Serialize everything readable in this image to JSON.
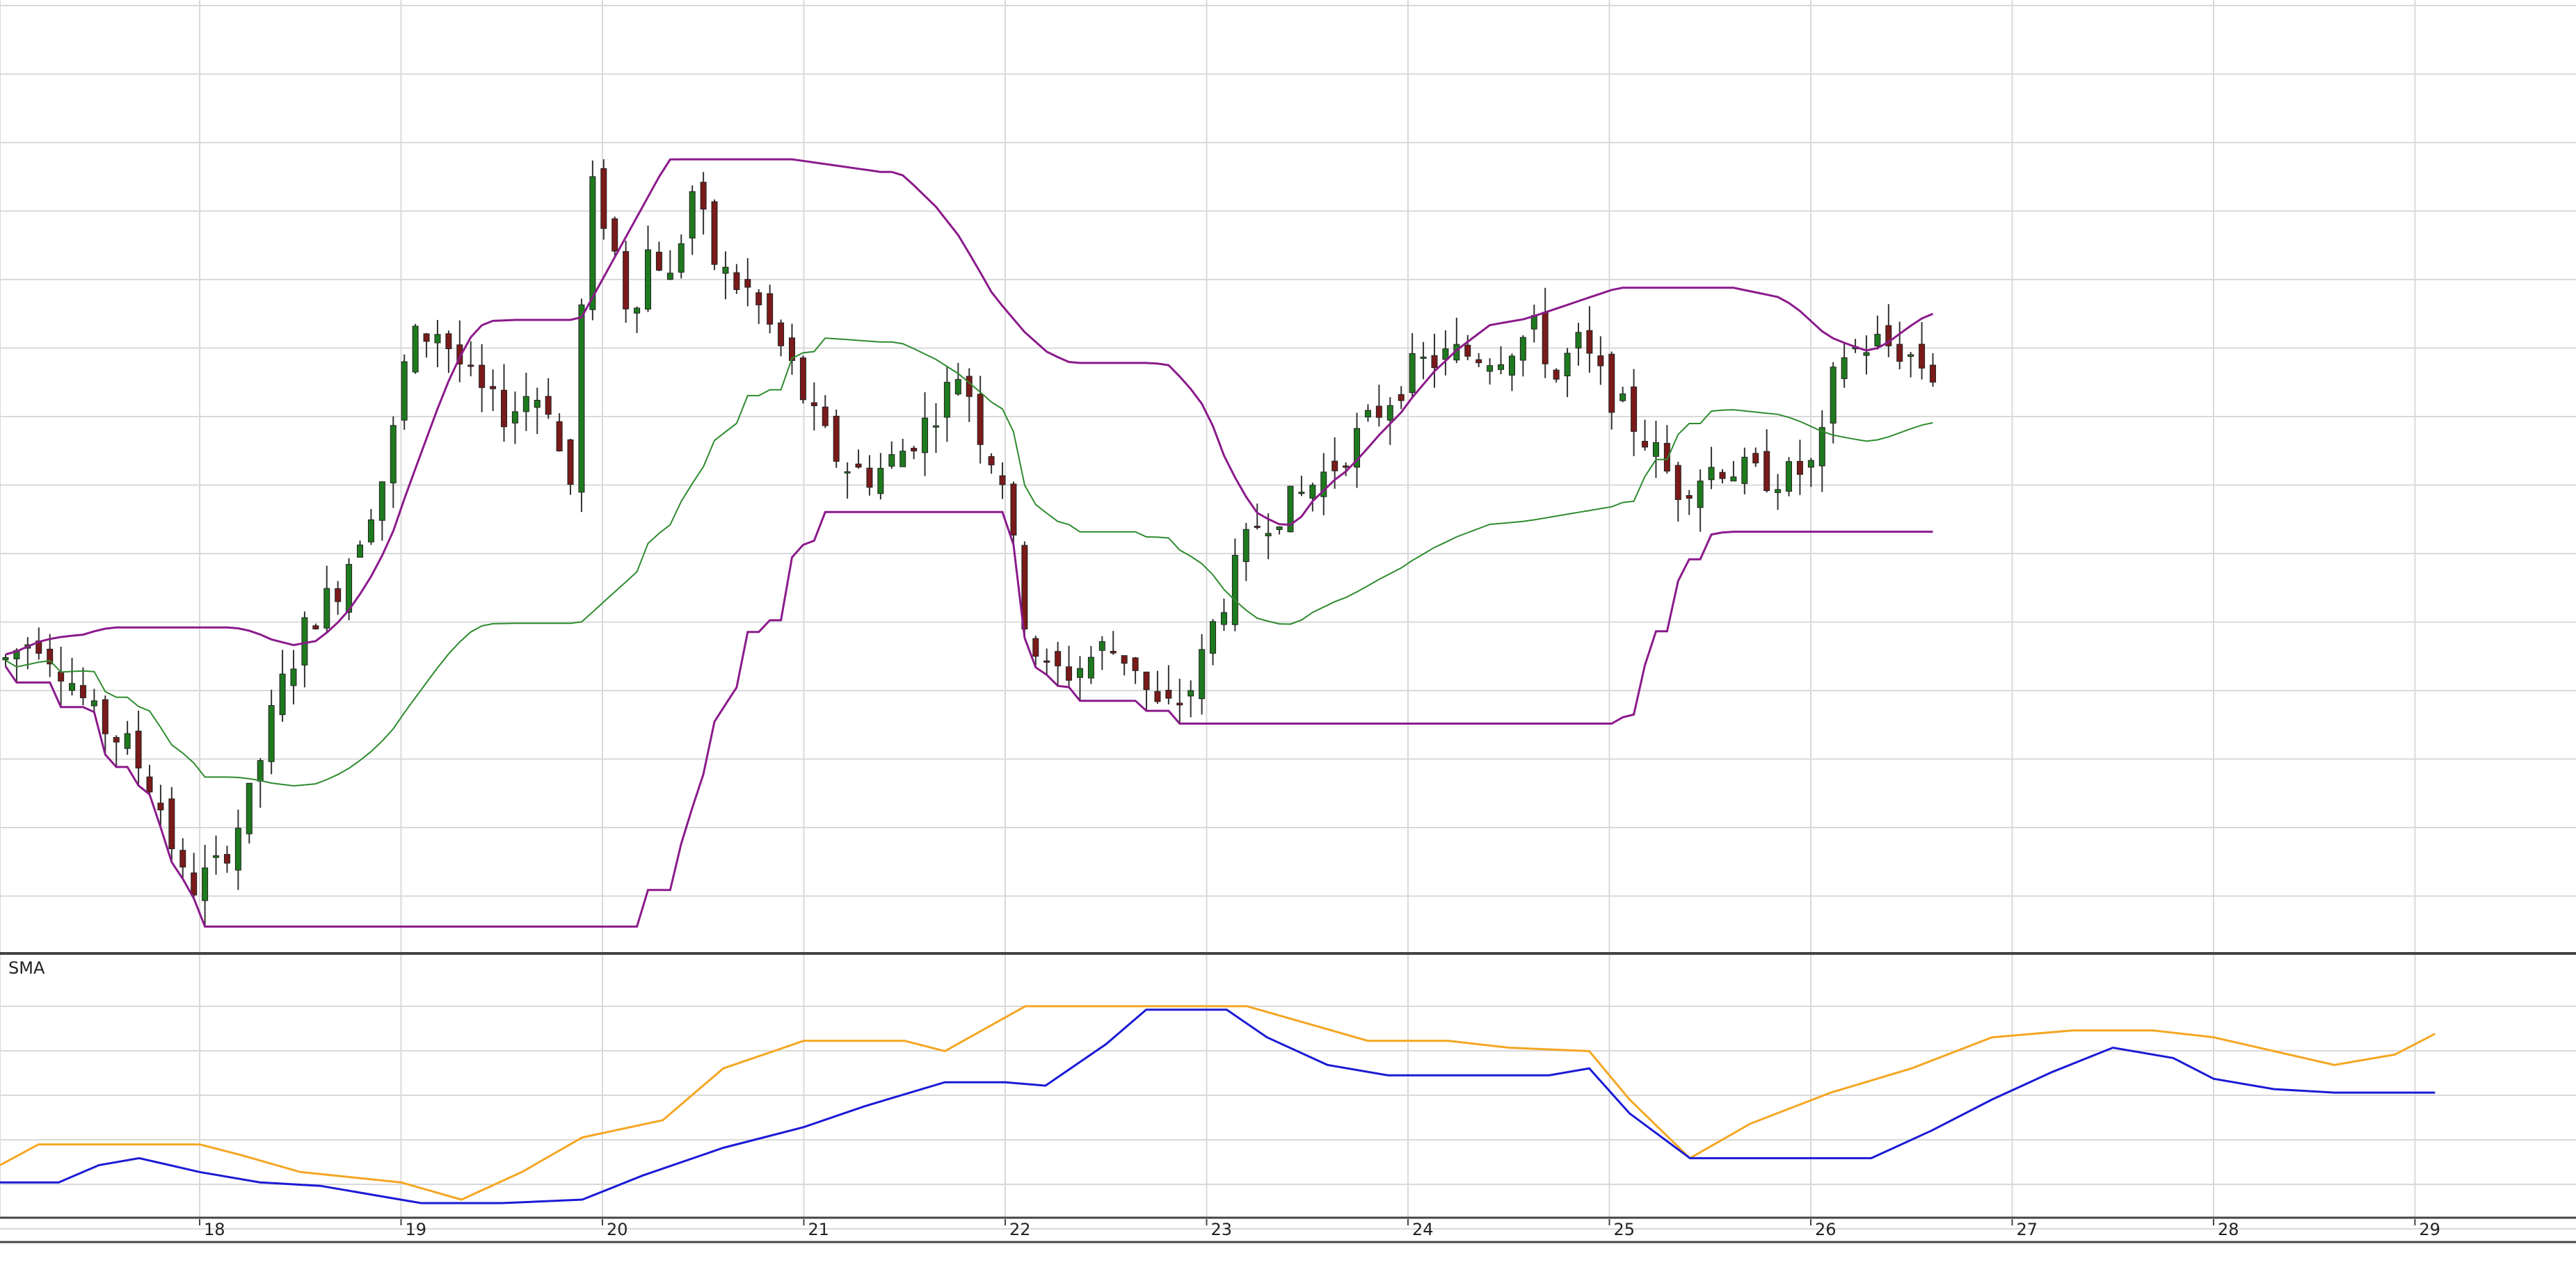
{
  "chart_data": [
    {
      "type": "candlestick",
      "panel": "price",
      "x_ticks": [
        "18",
        "19",
        "20",
        "21",
        "22",
        "23",
        "24",
        "25",
        "26",
        "27",
        "28",
        "29"
      ],
      "grid": true,
      "legend": "none",
      "colors": {
        "up_body": "#1e7a1e",
        "down_body": "#7a1a1a",
        "wick": "#333333",
        "band_upper": "#8b1a8b",
        "band_lower": "#8b1a8b",
        "midline": "#2e8b2e",
        "grid": "#d9d9d9"
      },
      "close_anchors": [
        [
          0,
          18
        ],
        [
          0.15,
          19
        ],
        [
          0.3,
          17.5
        ],
        [
          0.45,
          15.5
        ],
        [
          0.6,
          14.5
        ],
        [
          0.75,
          12.5
        ],
        [
          0.9,
          8.5
        ],
        [
          1.05,
          9.5
        ],
        [
          1.2,
          12.0
        ],
        [
          1.35,
          16.5
        ],
        [
          1.5,
          19.5
        ],
        [
          1.65,
          21.0
        ],
        [
          1.8,
          24.0
        ],
        [
          1.9,
          26.0
        ],
        [
          2.0,
          31.0
        ],
        [
          2.15,
          31.5
        ],
        [
          2.3,
          29.5
        ],
        [
          2.4,
          28.5
        ],
        [
          2.5,
          28.0
        ],
        [
          2.6,
          29.0
        ],
        [
          2.7,
          28.5
        ],
        [
          2.8,
          24.5
        ],
        [
          2.9,
          37.5
        ],
        [
          3.0,
          35.5
        ],
        [
          3.1,
          32.0
        ],
        [
          3.2,
          35.0
        ],
        [
          3.3,
          33.5
        ],
        [
          3.42,
          37.5
        ],
        [
          3.5,
          34.5
        ],
        [
          3.6,
          33.5
        ],
        [
          3.7,
          33.0
        ],
        [
          3.8,
          31.5
        ],
        [
          3.9,
          30.0
        ],
        [
          4.0,
          28.0
        ],
        [
          4.15,
          26.0
        ],
        [
          4.3,
          25.5
        ],
        [
          4.45,
          26.5
        ],
        [
          4.6,
          28.0
        ],
        [
          4.75,
          30.0
        ],
        [
          4.85,
          27.0
        ],
        [
          4.95,
          25.5
        ],
        [
          5.05,
          20.0
        ],
        [
          5.15,
          17.5
        ],
        [
          5.3,
          17.5
        ],
        [
          5.45,
          18.5
        ],
        [
          5.6,
          18.0
        ],
        [
          5.7,
          16.0
        ],
        [
          5.8,
          16.0
        ],
        [
          5.9,
          17.0
        ],
        [
          6.0,
          19.5
        ],
        [
          6.2,
          23.5
        ],
        [
          6.4,
          24.5
        ],
        [
          6.6,
          26.0
        ],
        [
          6.8,
          28.0
        ],
        [
          7.0,
          30.0
        ],
        [
          7.2,
          30.5
        ],
        [
          7.4,
          30.5
        ],
        [
          7.6,
          31.5
        ],
        [
          7.7,
          29.5
        ],
        [
          7.8,
          31.0
        ],
        [
          8.0,
          28.5
        ],
        [
          8.15,
          27.0
        ],
        [
          8.3,
          25.0
        ],
        [
          8.5,
          26.0
        ],
        [
          8.7,
          25.5
        ],
        [
          8.85,
          25.5
        ],
        [
          9.0,
          26.0
        ],
        [
          9.1,
          30.5
        ],
        [
          9.3,
          31.0
        ],
        [
          9.45,
          30.5
        ],
        [
          9.6,
          29.5
        ]
      ],
      "ylim": [
        6,
        45
      ]
    },
    {
      "type": "line",
      "panel": "indicator",
      "title": "SMA",
      "x_ticks": [
        "18",
        "19",
        "20",
        "21",
        "22",
        "23",
        "24",
        "25",
        "26",
        "27",
        "28",
        "29"
      ],
      "grid": true,
      "series": [
        {
          "color": "#f5a623",
          "values": [
            [
              0,
              1.1
            ],
            [
              0.2,
              1.7
            ],
            [
              0.6,
              1.7
            ],
            [
              1.0,
              1.7
            ],
            [
              1.2,
              1.4
            ],
            [
              1.5,
              0.9
            ],
            [
              2.0,
              0.6
            ],
            [
              2.3,
              0.1
            ],
            [
              2.6,
              0.9
            ],
            [
              2.9,
              1.9
            ],
            [
              3.3,
              2.4
            ],
            [
              3.6,
              3.9
            ],
            [
              4.0,
              4.7
            ],
            [
              4.5,
              4.7
            ],
            [
              4.7,
              4.4
            ],
            [
              5.1,
              5.7
            ],
            [
              5.5,
              5.7
            ],
            [
              5.9,
              5.7
            ],
            [
              6.2,
              5.7
            ],
            [
              6.5,
              5.2
            ],
            [
              6.8,
              4.7
            ],
            [
              7.2,
              4.7
            ],
            [
              7.5,
              4.5
            ],
            [
              7.9,
              4.4
            ],
            [
              8.1,
              3.0
            ],
            [
              8.4,
              1.3
            ],
            [
              8.7,
              2.3
            ],
            [
              9.1,
              3.2
            ],
            [
              9.5,
              3.9
            ],
            [
              9.9,
              4.8
            ],
            [
              10.3,
              5.0
            ],
            [
              10.7,
              5.0
            ],
            [
              11.0,
              4.8
            ],
            [
              11.3,
              4.4
            ],
            [
              11.6,
              4.0
            ],
            [
              11.9,
              4.3
            ],
            [
              12.1,
              4.9
            ]
          ]
        },
        {
          "color": "#1a1ad6",
          "values": [
            [
              0,
              0.6
            ],
            [
              0.3,
              0.6
            ],
            [
              0.5,
              1.1
            ],
            [
              0.7,
              1.3
            ],
            [
              1.0,
              0.9
            ],
            [
              1.3,
              0.6
            ],
            [
              1.6,
              0.5
            ],
            [
              1.9,
              0.2
            ],
            [
              2.1,
              0.0
            ],
            [
              2.5,
              0.0
            ],
            [
              2.9,
              0.1
            ],
            [
              3.2,
              0.8
            ],
            [
              3.6,
              1.6
            ],
            [
              4.0,
              2.2
            ],
            [
              4.3,
              2.8
            ],
            [
              4.7,
              3.5
            ],
            [
              5.0,
              3.5
            ],
            [
              5.2,
              3.4
            ],
            [
              5.5,
              4.6
            ],
            [
              5.7,
              5.6
            ],
            [
              5.9,
              5.6
            ],
            [
              6.1,
              5.6
            ],
            [
              6.3,
              4.8
            ],
            [
              6.6,
              4.0
            ],
            [
              6.9,
              3.7
            ],
            [
              7.3,
              3.7
            ],
            [
              7.7,
              3.7
            ],
            [
              7.9,
              3.9
            ],
            [
              8.1,
              2.6
            ],
            [
              8.4,
              1.3
            ],
            [
              8.7,
              1.3
            ],
            [
              9.0,
              1.3
            ],
            [
              9.3,
              1.3
            ],
            [
              9.6,
              2.1
            ],
            [
              9.9,
              3.0
            ],
            [
              10.2,
              3.8
            ],
            [
              10.5,
              4.5
            ],
            [
              10.8,
              4.2
            ],
            [
              11.0,
              3.6
            ],
            [
              11.3,
              3.3
            ],
            [
              11.6,
              3.2
            ],
            [
              12.1,
              3.2
            ]
          ]
        }
      ],
      "ylim": [
        0,
        6
      ]
    }
  ]
}
